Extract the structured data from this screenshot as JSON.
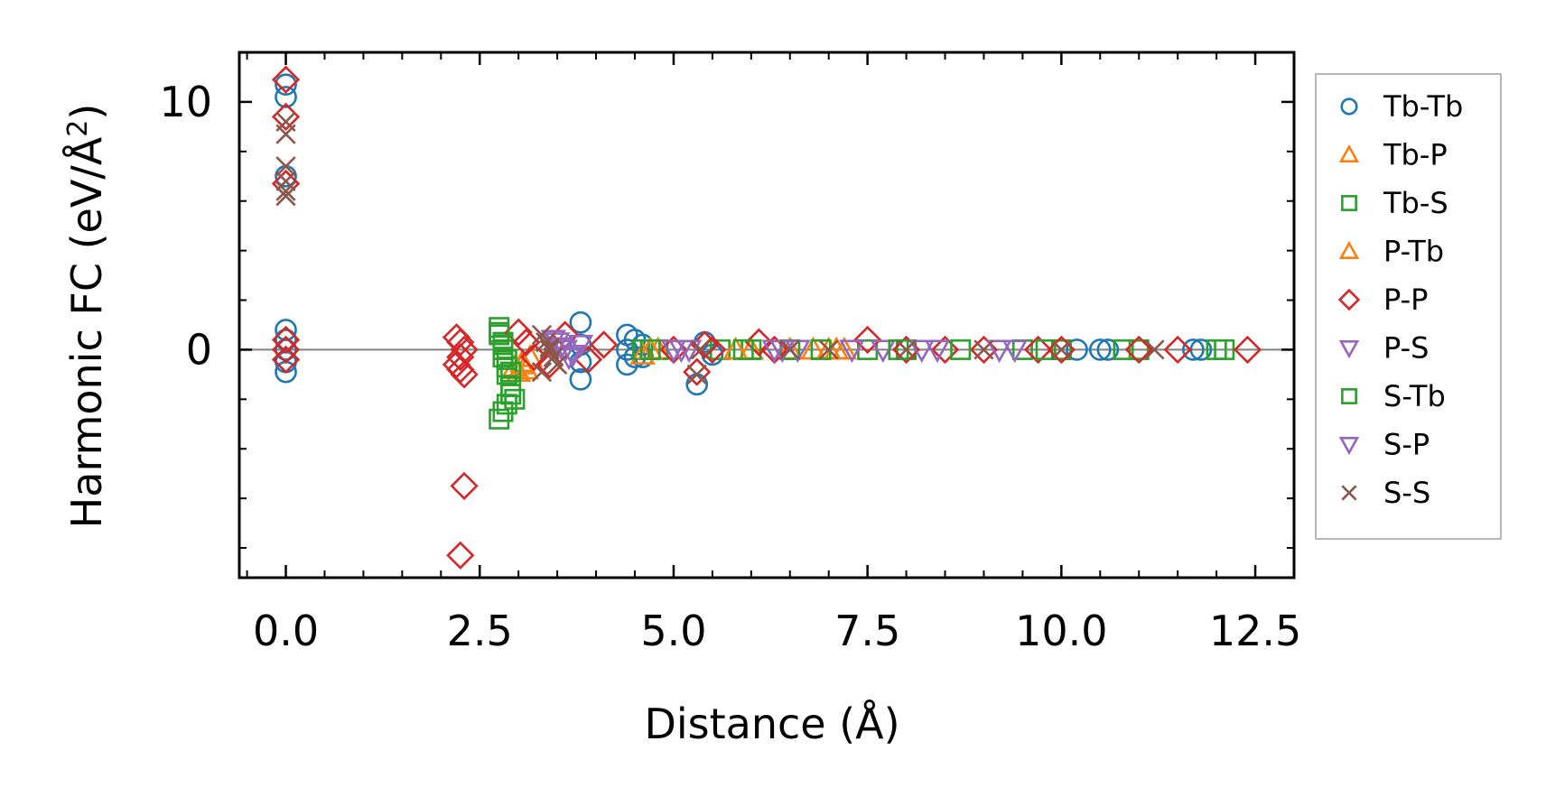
{
  "chart_data": {
    "type": "scatter",
    "xlabel": "Distance (Å)",
    "ylabel": "Harmonic FC (eV/Å",
    "ylabel_sup": "2",
    "ylabel_close": ")",
    "xlim": [
      -0.6,
      13.0
    ],
    "ylim": [
      -9.2,
      12.0
    ],
    "xticks": [
      0.0,
      2.5,
      5.0,
      7.5,
      10.0,
      12.5
    ],
    "xtick_labels": [
      "0.0",
      "2.5",
      "5.0",
      "7.5",
      "10.0",
      "12.5"
    ],
    "yticks": [
      0,
      10
    ],
    "ytick_labels": [
      "0",
      "10"
    ],
    "zero_line": true,
    "legend_position": "outside-right",
    "series": [
      {
        "name": "Tb-Tb",
        "marker": "circle",
        "color": "#1f77b4",
        "x": [
          0.0,
          0.0,
          0.0,
          0.0,
          0.0,
          0.0,
          0.0,
          0.0,
          3.8,
          3.8,
          3.8,
          3.8,
          4.4,
          4.4,
          4.5,
          4.5,
          4.6,
          4.6,
          4.4,
          5.3,
          5.4,
          5.5,
          10.2,
          10.5,
          10.6,
          11.7,
          11.8
        ],
        "y": [
          10.7,
          10.2,
          7.0,
          0.8,
          0.4,
          0.0,
          -0.5,
          -0.9,
          1.1,
          0.2,
          -0.5,
          -1.2,
          0.6,
          -0.6,
          0.4,
          -0.3,
          0.2,
          -0.3,
          0.0,
          -1.4,
          0.3,
          -0.2,
          0.0,
          0.0,
          0.0,
          0.0,
          0.0
        ]
      },
      {
        "name": "Tb-P",
        "marker": "triangle-up",
        "color": "#ff7f0e",
        "x": [
          2.95,
          3.0,
          3.05,
          3.1,
          4.6,
          4.8,
          6.0,
          6.5,
          7.0,
          7.1
        ],
        "y": [
          -0.7,
          -0.9,
          -0.5,
          -0.8,
          -0.2,
          0.0,
          0.0,
          0.0,
          0.0,
          0.0
        ]
      },
      {
        "name": "Tb-S",
        "marker": "square",
        "color": "#2ca02c",
        "x": [
          2.75,
          2.75,
          2.8,
          2.8,
          2.8,
          2.85,
          2.85,
          2.9,
          2.9,
          2.95,
          2.75,
          2.8,
          2.85,
          4.6,
          4.8,
          5.6,
          6.0,
          6.5,
          7.5,
          8.0,
          9.5,
          10.0,
          10.8,
          11.0,
          12.0,
          12.1
        ],
        "y": [
          0.9,
          0.6,
          0.3,
          0.0,
          -0.3,
          -0.7,
          -1.0,
          -1.5,
          -1.8,
          -2.0,
          -2.8,
          -2.5,
          -2.2,
          0.0,
          0.0,
          0.0,
          0.0,
          0.0,
          0.0,
          0.0,
          0.0,
          0.0,
          0.0,
          0.0,
          0.0,
          0.0
        ]
      },
      {
        "name": "P-Tb",
        "marker": "triangle-up",
        "color": "#ff7f0e",
        "x": [
          3.05,
          3.15,
          4.7,
          5.8,
          6.8,
          7.2
        ],
        "y": [
          -0.6,
          -0.3,
          0.0,
          0.0,
          0.0,
          0.0
        ]
      },
      {
        "name": "P-P",
        "marker": "diamond",
        "color": "#d62728",
        "x": [
          0.0,
          0.0,
          0.0,
          0.0,
          0.0,
          0.0,
          2.2,
          2.25,
          2.3,
          2.25,
          2.2,
          2.25,
          2.3,
          2.3,
          2.25,
          3.0,
          3.1,
          3.2,
          3.4,
          3.6,
          3.9,
          4.1,
          5.3,
          5.4,
          5.0,
          5.5,
          6.1,
          6.3,
          7.5,
          8.0,
          8.5,
          9.0,
          9.7,
          10.0,
          11.0,
          11.5,
          12.4
        ],
        "y": [
          10.9,
          9.4,
          6.7,
          0.4,
          0.0,
          -0.4,
          0.5,
          0.3,
          0.0,
          -0.3,
          -0.6,
          -0.8,
          -1.0,
          -5.5,
          -8.3,
          0.7,
          0.3,
          -0.3,
          -0.6,
          0.6,
          -0.4,
          0.2,
          -0.9,
          0.2,
          0.0,
          0.0,
          0.3,
          0.0,
          0.4,
          0.0,
          0.0,
          0.0,
          0.0,
          0.0,
          0.0,
          0.0,
          0.0
        ]
      },
      {
        "name": "P-S",
        "marker": "triangle-down",
        "color": "#9467bd",
        "x": [
          3.5,
          3.6,
          3.7,
          3.8,
          5.0,
          5.2,
          6.3,
          6.6,
          7.7,
          8.4,
          9.2
        ],
        "y": [
          0.3,
          0.0,
          -0.2,
          0.2,
          0.0,
          0.0,
          0.0,
          0.0,
          0.0,
          0.0,
          0.0
        ]
      },
      {
        "name": "S-Tb",
        "marker": "square",
        "color": "#2ca02c",
        "x": [
          2.75,
          2.8,
          2.85,
          2.9,
          4.7,
          5.9,
          6.9,
          7.9,
          8.7,
          9.8
        ],
        "y": [
          0.7,
          0.2,
          -0.4,
          -0.9,
          0.0,
          0.0,
          0.0,
          0.0,
          0.0,
          0.0
        ]
      },
      {
        "name": "S-P",
        "marker": "triangle-down",
        "color": "#9467bd",
        "x": [
          3.45,
          3.55,
          3.65,
          5.1,
          6.4,
          7.3,
          8.2,
          9.4
        ],
        "y": [
          0.4,
          0.1,
          -0.3,
          0.0,
          0.0,
          0.0,
          0.0,
          0.0
        ]
      },
      {
        "name": "S-S",
        "marker": "x",
        "color": "#8c564b",
        "x": [
          0.0,
          0.0,
          0.0,
          0.0,
          0.0,
          0.0,
          3.3,
          3.35,
          3.4,
          3.45,
          3.5,
          3.3,
          3.4,
          5.3,
          5.35,
          6.5,
          7.0,
          8.0,
          9.0,
          10.0,
          11.2
        ],
        "y": [
          9.2,
          8.7,
          7.4,
          6.8,
          6.4,
          6.2,
          0.6,
          0.3,
          0.0,
          -0.3,
          -0.6,
          -0.9,
          0.1,
          -1.0,
          0.0,
          0.0,
          0.0,
          0.0,
          0.0,
          0.0,
          0.0
        ]
      }
    ]
  }
}
